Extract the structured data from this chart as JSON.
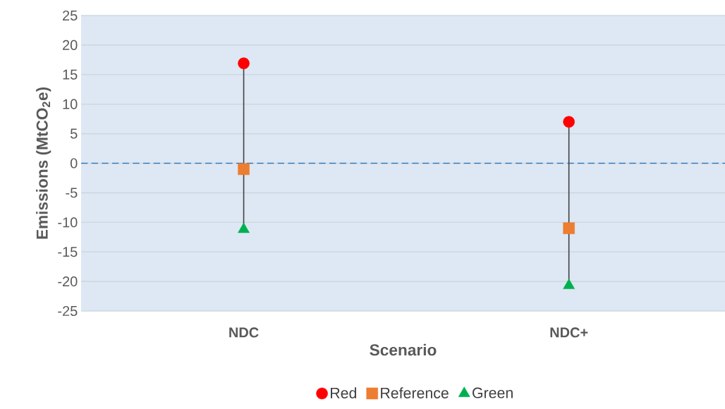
{
  "chart_data": {
    "type": "scatter",
    "xlabel": "Scenario",
    "ylabel": "Emissions (MtCO$_{2}$e)",
    "categories": [
      "NDC",
      "NDC+"
    ],
    "series": [
      {
        "name": "Red",
        "color": "#ff0000",
        "marker": "circle",
        "values": [
          16.9,
          7.0
        ]
      },
      {
        "name": "Reference",
        "color": "#ed7d31",
        "marker": "square",
        "values": [
          -1.0,
          -11.0
        ]
      },
      {
        "name": "Green",
        "color": "#00b050",
        "marker": "triangle",
        "values": [
          -11.2,
          -20.7
        ]
      }
    ],
    "ylim": [
      -25,
      25
    ],
    "yticks": [
      -25,
      -20,
      -15,
      -10,
      -5,
      0,
      5,
      10,
      15,
      20,
      25
    ],
    "ref_lines": [
      {
        "axis": "y",
        "value": 0,
        "color": "#2e75b6",
        "line_style": "dashed"
      }
    ],
    "grid": "y",
    "legend": "bottom"
  }
}
